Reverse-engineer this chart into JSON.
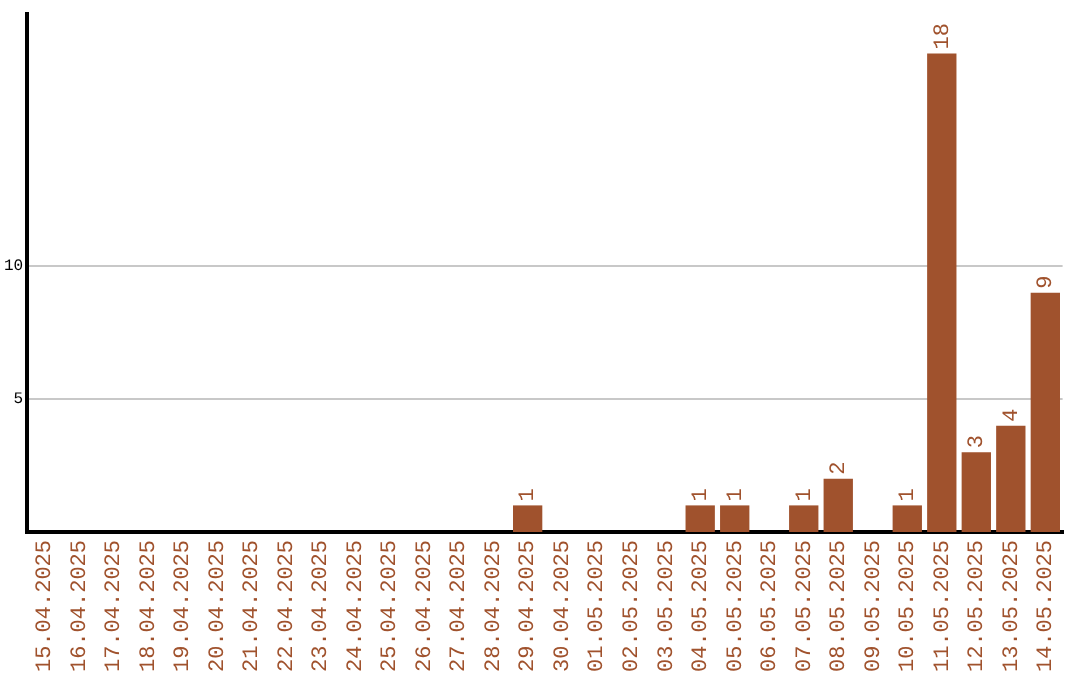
{
  "chart_data": {
    "type": "bar",
    "categories": [
      "15.04.2025",
      "16.04.2025",
      "17.04.2025",
      "18.04.2025",
      "19.04.2025",
      "20.04.2025",
      "21.04.2025",
      "22.04.2025",
      "23.04.2025",
      "24.04.2025",
      "25.04.2025",
      "26.04.2025",
      "27.04.2025",
      "28.04.2025",
      "29.04.2025",
      "30.04.2025",
      "01.05.2025",
      "02.05.2025",
      "03.05.2025",
      "04.05.2025",
      "05.05.2025",
      "06.05.2025",
      "07.05.2025",
      "08.05.2025",
      "09.05.2025",
      "10.05.2025",
      "11.05.2025",
      "12.05.2025",
      "13.05.2025",
      "14.05.2025"
    ],
    "values": [
      0,
      0,
      0,
      0,
      0,
      0,
      0,
      0,
      0,
      0,
      0,
      0,
      0,
      0,
      1,
      0,
      0,
      0,
      0,
      1,
      1,
      0,
      1,
      2,
      0,
      1,
      18,
      3,
      4,
      9
    ],
    "value_labels": [
      null,
      null,
      null,
      null,
      null,
      null,
      null,
      null,
      null,
      null,
      null,
      null,
      null,
      null,
      "1",
      null,
      null,
      null,
      null,
      "1",
      "1",
      null,
      "1",
      "2",
      null,
      "1",
      "18",
      "3",
      "4",
      "9"
    ],
    "color": "#a0522d",
    "ylim": [
      0,
      19.5
    ],
    "yticks": [
      5,
      10
    ],
    "grid": "y",
    "legend": false
  }
}
